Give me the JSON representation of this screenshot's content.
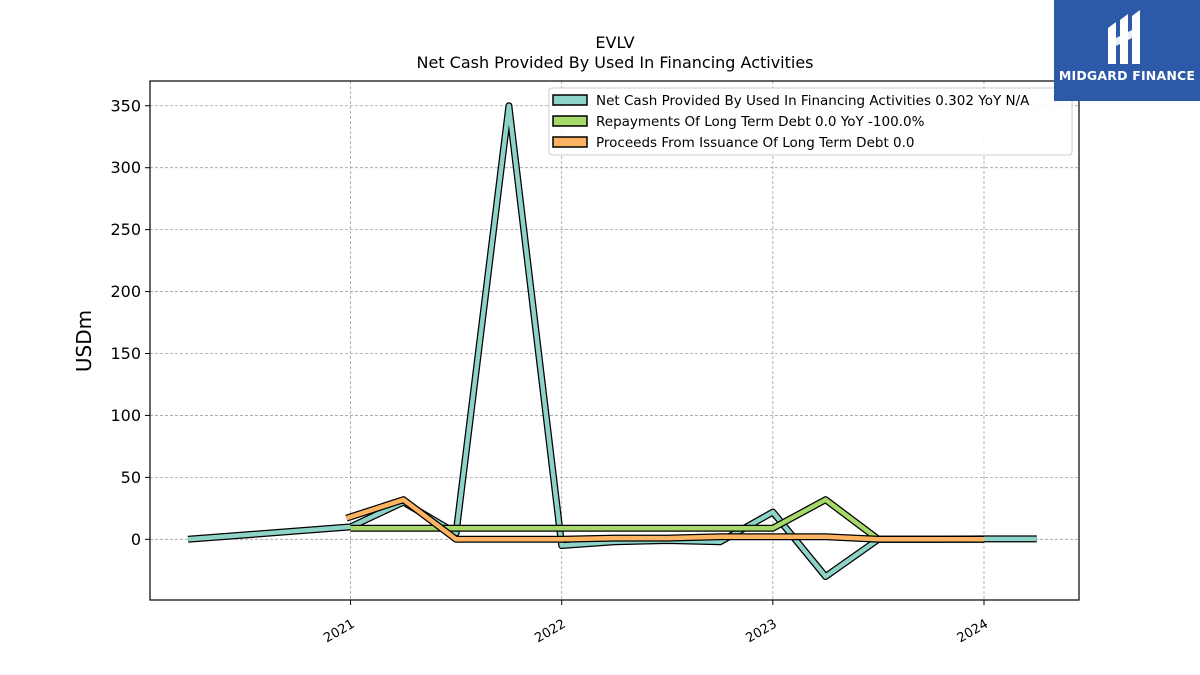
{
  "chart_data": {
    "type": "line",
    "title": "EVLV",
    "subtitle": "Net Cash Provided By Used In Financing Activities",
    "xlabel": "",
    "ylabel": "USDm",
    "ylim": [
      -49,
      370
    ],
    "xlim": [
      2020.05,
      2024.45
    ],
    "yticks": [
      0,
      50,
      100,
      150,
      200,
      250,
      300,
      350
    ],
    "xticks": [
      2021,
      2022,
      2023,
      2024
    ],
    "xtick_labels": [
      "2021",
      "2022",
      "2023",
      "2024"
    ],
    "grid": true,
    "legend_position": "top-right",
    "series": [
      {
        "name": "Net Cash Provided By Used In Financing Activities  0.302 YoY N/A",
        "color": "#8dd3c7",
        "x": [
          2020.23,
          2021.0,
          2021.25,
          2021.5,
          2021.75,
          2022.0,
          2022.25,
          2022.5,
          2022.75,
          2023.0,
          2023.25,
          2023.5,
          2023.75,
          2024.0,
          2024.25
        ],
        "y": [
          0,
          10,
          30,
          5,
          350,
          -5,
          -2,
          -1,
          -2,
          22,
          -30,
          0,
          0,
          0.3,
          0.302
        ]
      },
      {
        "name": "Repayments Of Long Term Debt  0.0 YoY -100.0%",
        "color": "#a6d96a",
        "x": [
          2021.0,
          2021.25,
          2021.5,
          2021.75,
          2022.0,
          2022.25,
          2022.5,
          2022.75,
          2023.0,
          2023.25,
          2023.5,
          2023.75,
          2024.0
        ],
        "y": [
          9,
          9,
          9,
          9,
          9,
          9,
          9,
          9,
          9,
          32,
          0,
          0,
          0
        ]
      },
      {
        "name": "Proceeds From Issuance Of Long Term Debt  0.0",
        "color": "#fdb462",
        "x": [
          2020.98,
          2021.25,
          2021.5,
          2021.75,
          2022.0,
          2022.25,
          2022.5,
          2022.75,
          2023.0,
          2023.25,
          2023.5,
          2023.75,
          2024.0
        ],
        "y": [
          17,
          32,
          0,
          0,
          0,
          1,
          1,
          2,
          2,
          2,
          0,
          0,
          0
        ]
      }
    ]
  },
  "logo": {
    "text": "MIDGARD FINANCE",
    "color": "#2c5aa8"
  }
}
